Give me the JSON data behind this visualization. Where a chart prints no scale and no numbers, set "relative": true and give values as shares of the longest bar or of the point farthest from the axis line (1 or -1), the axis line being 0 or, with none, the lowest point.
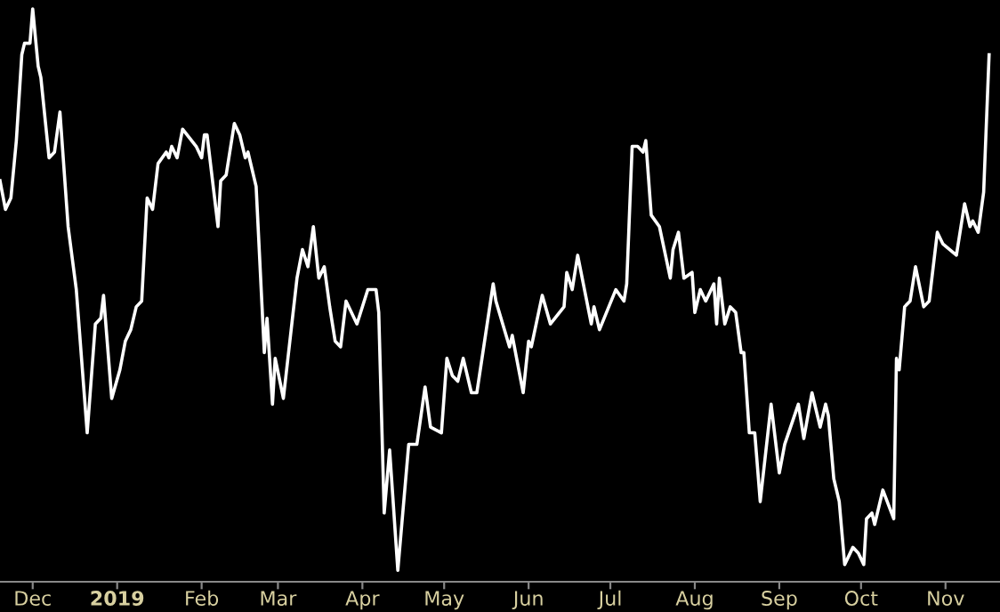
{
  "chart_data": {
    "type": "line",
    "relative": true,
    "grid": false,
    "legend": false,
    "color": "#ffffff",
    "xlim": [
      "2018-11-19",
      "2019-11-21"
    ],
    "xticks": [
      {
        "value": "2018-12-01",
        "label": "Dec"
      },
      {
        "value": "2019-01-01",
        "label": "2019"
      },
      {
        "value": "2019-02-01",
        "label": "Feb"
      },
      {
        "value": "2019-03-01",
        "label": "Mar"
      },
      {
        "value": "2019-04-01",
        "label": "Apr"
      },
      {
        "value": "2019-05-01",
        "label": "May"
      },
      {
        "value": "2019-06-01",
        "label": "Jun"
      },
      {
        "value": "2019-07-01",
        "label": "Jul"
      },
      {
        "value": "2019-08-01",
        "label": "Aug"
      },
      {
        "value": "2019-09-01",
        "label": "Sep"
      },
      {
        "value": "2019-10-01",
        "label": "Oct"
      },
      {
        "value": "2019-11-01",
        "label": "Nov"
      }
    ],
    "x": [
      "2018-11-19",
      "2018-11-21",
      "2018-11-23",
      "2018-11-25",
      "2018-11-27",
      "2018-11-28",
      "2018-11-30",
      "2018-12-01",
      "2018-12-03",
      "2018-12-04",
      "2018-12-07",
      "2018-12-09",
      "2018-12-11",
      "2018-12-14",
      "2018-12-17",
      "2018-12-21",
      "2018-12-24",
      "2018-12-26",
      "2018-12-27",
      "2018-12-30",
      "2019-01-02",
      "2019-01-04",
      "2019-01-06",
      "2019-01-08",
      "2019-01-10",
      "2019-01-12",
      "2019-01-14",
      "2019-01-16",
      "2019-01-19",
      "2019-01-20",
      "2019-01-21",
      "2019-01-23",
      "2019-01-25",
      "2019-01-30",
      "2019-02-01",
      "2019-02-02",
      "2019-02-03",
      "2019-02-07",
      "2019-02-08",
      "2019-02-10",
      "2019-02-13",
      "2019-02-15",
      "2019-02-17",
      "2019-02-18",
      "2019-02-21",
      "2019-02-24",
      "2019-02-25",
      "2019-02-27",
      "2019-02-28",
      "2019-03-03",
      "2019-03-08",
      "2019-03-10",
      "2019-03-12",
      "2019-03-14",
      "2019-03-16",
      "2019-03-18",
      "2019-03-20",
      "2019-03-22",
      "2019-03-24",
      "2019-03-26",
      "2019-03-30",
      "2019-04-03",
      "2019-04-06",
      "2019-04-07",
      "2019-04-09",
      "2019-04-11",
      "2019-04-14",
      "2019-04-18",
      "2019-04-21",
      "2019-04-24",
      "2019-04-26",
      "2019-04-30",
      "2019-05-02",
      "2019-05-04",
      "2019-05-06",
      "2019-05-08",
      "2019-05-11",
      "2019-05-13",
      "2019-05-19",
      "2019-05-20",
      "2019-05-25",
      "2019-05-26",
      "2019-05-30",
      "2019-06-01",
      "2019-06-02",
      "2019-06-06",
      "2019-06-09",
      "2019-06-14",
      "2019-06-15",
      "2019-06-17",
      "2019-06-19",
      "2019-06-24",
      "2019-06-25",
      "2019-06-27",
      "2019-07-03",
      "2019-07-06",
      "2019-07-07",
      "2019-07-09",
      "2019-07-11",
      "2019-07-13",
      "2019-07-14",
      "2019-07-16",
      "2019-07-19",
      "2019-07-23",
      "2019-07-24",
      "2019-07-26",
      "2019-07-28",
      "2019-07-31",
      "2019-08-01",
      "2019-08-03",
      "2019-08-05",
      "2019-08-08",
      "2019-08-09",
      "2019-08-10",
      "2019-08-12",
      "2019-08-14",
      "2019-08-16",
      "2019-08-18",
      "2019-08-19",
      "2019-08-21",
      "2019-08-23",
      "2019-08-25",
      "2019-08-29",
      "2019-09-01",
      "2019-09-03",
      "2019-09-08",
      "2019-09-10",
      "2019-09-13",
      "2019-09-16",
      "2019-09-18",
      "2019-09-19",
      "2019-09-21",
      "2019-09-23",
      "2019-09-25",
      "2019-09-28",
      "2019-09-30",
      "2019-10-02",
      "2019-10-03",
      "2019-10-05",
      "2019-10-06",
      "2019-10-09",
      "2019-10-13",
      "2019-10-14",
      "2019-10-15",
      "2019-10-17",
      "2019-10-19",
      "2019-10-21",
      "2019-10-24",
      "2019-10-26",
      "2019-10-29",
      "2019-10-31",
      "2019-11-05",
      "2019-11-08",
      "2019-11-10",
      "2019-11-11",
      "2019-11-13",
      "2019-11-15",
      "2019-11-17"
    ],
    "values": [
      0.7,
      0.65,
      0.67,
      0.77,
      0.92,
      0.94,
      0.94,
      1.0,
      0.9,
      0.88,
      0.74,
      0.75,
      0.82,
      0.62,
      0.51,
      0.26,
      0.45,
      0.46,
      0.5,
      0.32,
      0.37,
      0.42,
      0.44,
      0.48,
      0.49,
      0.67,
      0.65,
      0.73,
      0.75,
      0.74,
      0.76,
      0.74,
      0.79,
      0.76,
      0.74,
      0.78,
      0.78,
      0.62,
      0.7,
      0.71,
      0.8,
      0.78,
      0.74,
      0.75,
      0.69,
      0.4,
      0.46,
      0.31,
      0.39,
      0.32,
      0.53,
      0.58,
      0.55,
      0.62,
      0.53,
      0.55,
      0.48,
      0.42,
      0.41,
      0.49,
      0.45,
      0.51,
      0.51,
      0.47,
      0.12,
      0.23,
      0.02,
      0.24,
      0.24,
      0.34,
      0.27,
      0.26,
      0.39,
      0.36,
      0.35,
      0.39,
      0.33,
      0.33,
      0.52,
      0.49,
      0.41,
      0.43,
      0.33,
      0.42,
      0.41,
      0.5,
      0.45,
      0.48,
      0.54,
      0.51,
      0.57,
      0.45,
      0.48,
      0.44,
      0.51,
      0.49,
      0.52,
      0.76,
      0.76,
      0.75,
      0.77,
      0.64,
      0.62,
      0.53,
      0.58,
      0.61,
      0.53,
      0.54,
      0.47,
      0.51,
      0.49,
      0.52,
      0.45,
      0.53,
      0.45,
      0.48,
      0.47,
      0.4,
      0.4,
      0.26,
      0.26,
      0.14,
      0.31,
      0.19,
      0.24,
      0.31,
      0.25,
      0.33,
      0.27,
      0.31,
      0.29,
      0.18,
      0.14,
      0.03,
      0.06,
      0.05,
      0.03,
      0.11,
      0.12,
      0.1,
      0.16,
      0.11,
      0.39,
      0.37,
      0.48,
      0.49,
      0.55,
      0.48,
      0.49,
      0.61,
      0.59,
      0.57,
      0.66,
      0.62,
      0.63,
      0.61,
      0.68,
      0.92
    ]
  }
}
